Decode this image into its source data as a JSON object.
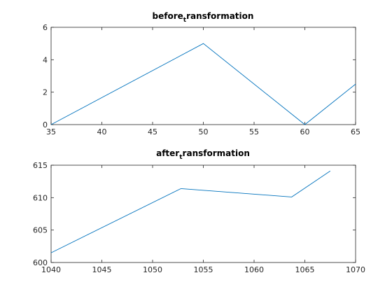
{
  "chart_data": [
    {
      "type": "line",
      "title": {
        "main": "before",
        "sub": "t",
        "rest": "ransformation"
      },
      "xlim": [
        35,
        65
      ],
      "ylim": [
        0,
        6
      ],
      "xticks": [
        "35",
        "40",
        "45",
        "50",
        "55",
        "60",
        "65"
      ],
      "yticks": [
        "0",
        "2",
        "4",
        "6"
      ],
      "grid": false,
      "series": [
        {
          "color": "#0072bd",
          "x": [
            35,
            50,
            60,
            65
          ],
          "y": [
            0,
            5,
            0,
            2.5
          ]
        }
      ]
    },
    {
      "type": "line",
      "title": {
        "main": "after",
        "sub": "t",
        "rest": "ransformation"
      },
      "xlim": [
        1040,
        1070
      ],
      "ylim": [
        600,
        615
      ],
      "xticks": [
        "1040",
        "1045",
        "1050",
        "1055",
        "1060",
        "1065",
        "1070"
      ],
      "yticks": [
        "600",
        "605",
        "610",
        "615"
      ],
      "grid": false,
      "series": [
        {
          "color": "#0072bd",
          "x": [
            1040,
            1052.8,
            1063.7,
            1067.5
          ],
          "y": [
            601.5,
            611.4,
            610.1,
            614.1
          ]
        }
      ]
    }
  ]
}
